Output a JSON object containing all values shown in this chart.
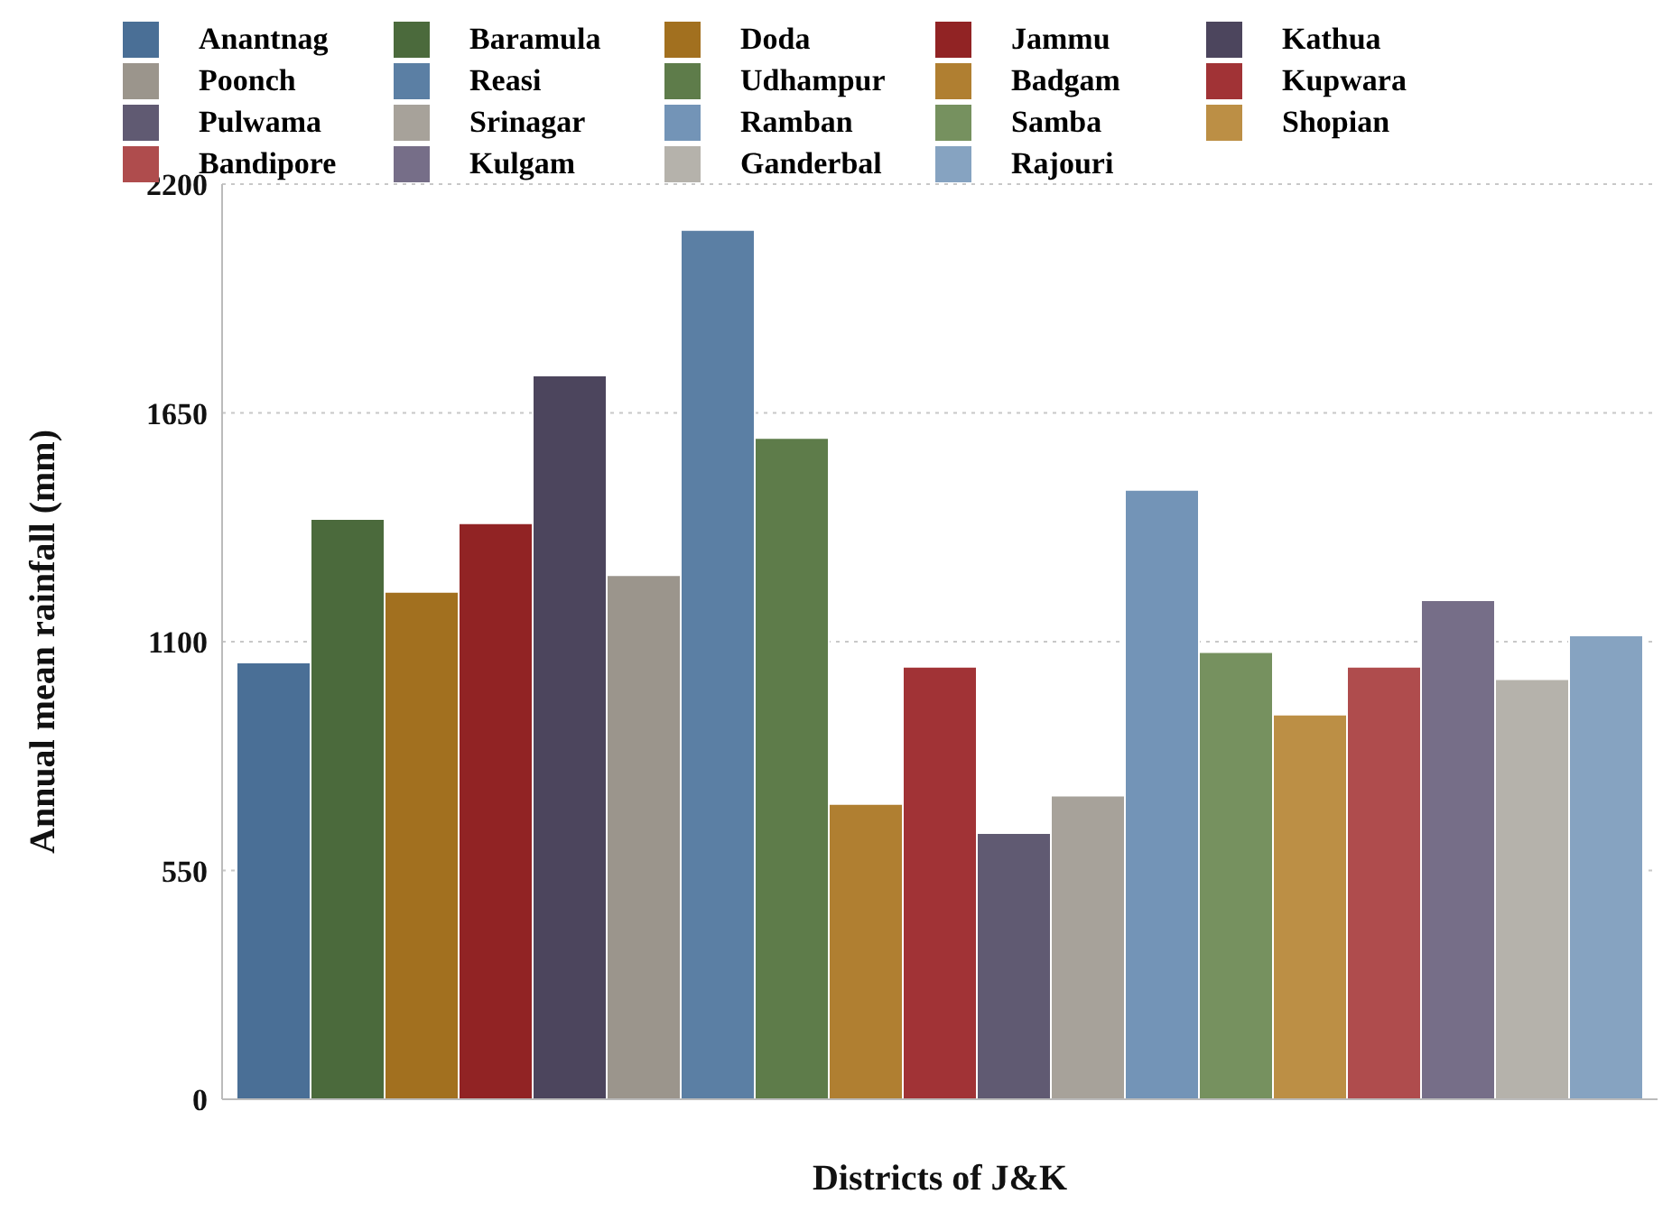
{
  "chart_data": {
    "type": "bar",
    "xlabel": "Districts of J&K",
    "ylabel": "Annual mean rainfall (mm)",
    "categories": [
      null
    ],
    "series": [
      {
        "name": "Anantnag",
        "color": "#4a6f96",
        "values": [
          1050
        ]
      },
      {
        "name": "Baramula",
        "color": "#4b6a3c",
        "values": [
          1395
        ]
      },
      {
        "name": "Doda",
        "color": "#a2701f",
        "values": [
          1220
        ]
      },
      {
        "name": "Jammu",
        "color": "#912324",
        "values": [
          1385
        ]
      },
      {
        "name": "Kathua",
        "color": "#4c455d",
        "values": [
          1740
        ]
      },
      {
        "name": "Poonch",
        "color": "#9b958c",
        "values": [
          1260
        ]
      },
      {
        "name": "Reasi",
        "color": "#5b7fa4",
        "values": [
          2090
        ]
      },
      {
        "name": "Udhampur",
        "color": "#5e7c4a",
        "values": [
          1590
        ]
      },
      {
        "name": "Badgam",
        "color": "#b07f31",
        "values": [
          710
        ]
      },
      {
        "name": "Kupwara",
        "color": "#a13336",
        "values": [
          1040
        ]
      },
      {
        "name": "Pulwama",
        "color": "#605a72",
        "values": [
          640
        ]
      },
      {
        "name": "Srinagar",
        "color": "#a7a29a",
        "values": [
          730
        ]
      },
      {
        "name": "Ramban",
        "color": "#7394b7",
        "values": [
          1465
        ]
      },
      {
        "name": "Samba",
        "color": "#76915f",
        "values": [
          1075
        ]
      },
      {
        "name": "Shopian",
        "color": "#bc8f45",
        "values": [
          925
        ]
      },
      {
        "name": "Bandipore",
        "color": "#af4c4d",
        "values": [
          1040
        ]
      },
      {
        "name": "Kulgam",
        "color": "#766e88",
        "values": [
          1200
        ]
      },
      {
        "name": "Ganderbal",
        "color": "#b5b2ab",
        "values": [
          1010
        ]
      },
      {
        "name": "Rajouri",
        "color": "#86a3c1",
        "values": [
          1115
        ]
      }
    ],
    "ylim": [
      0,
      2200
    ],
    "yticks": [
      0,
      550,
      1100,
      1650,
      2200
    ],
    "grid": "y",
    "legend": "top"
  }
}
